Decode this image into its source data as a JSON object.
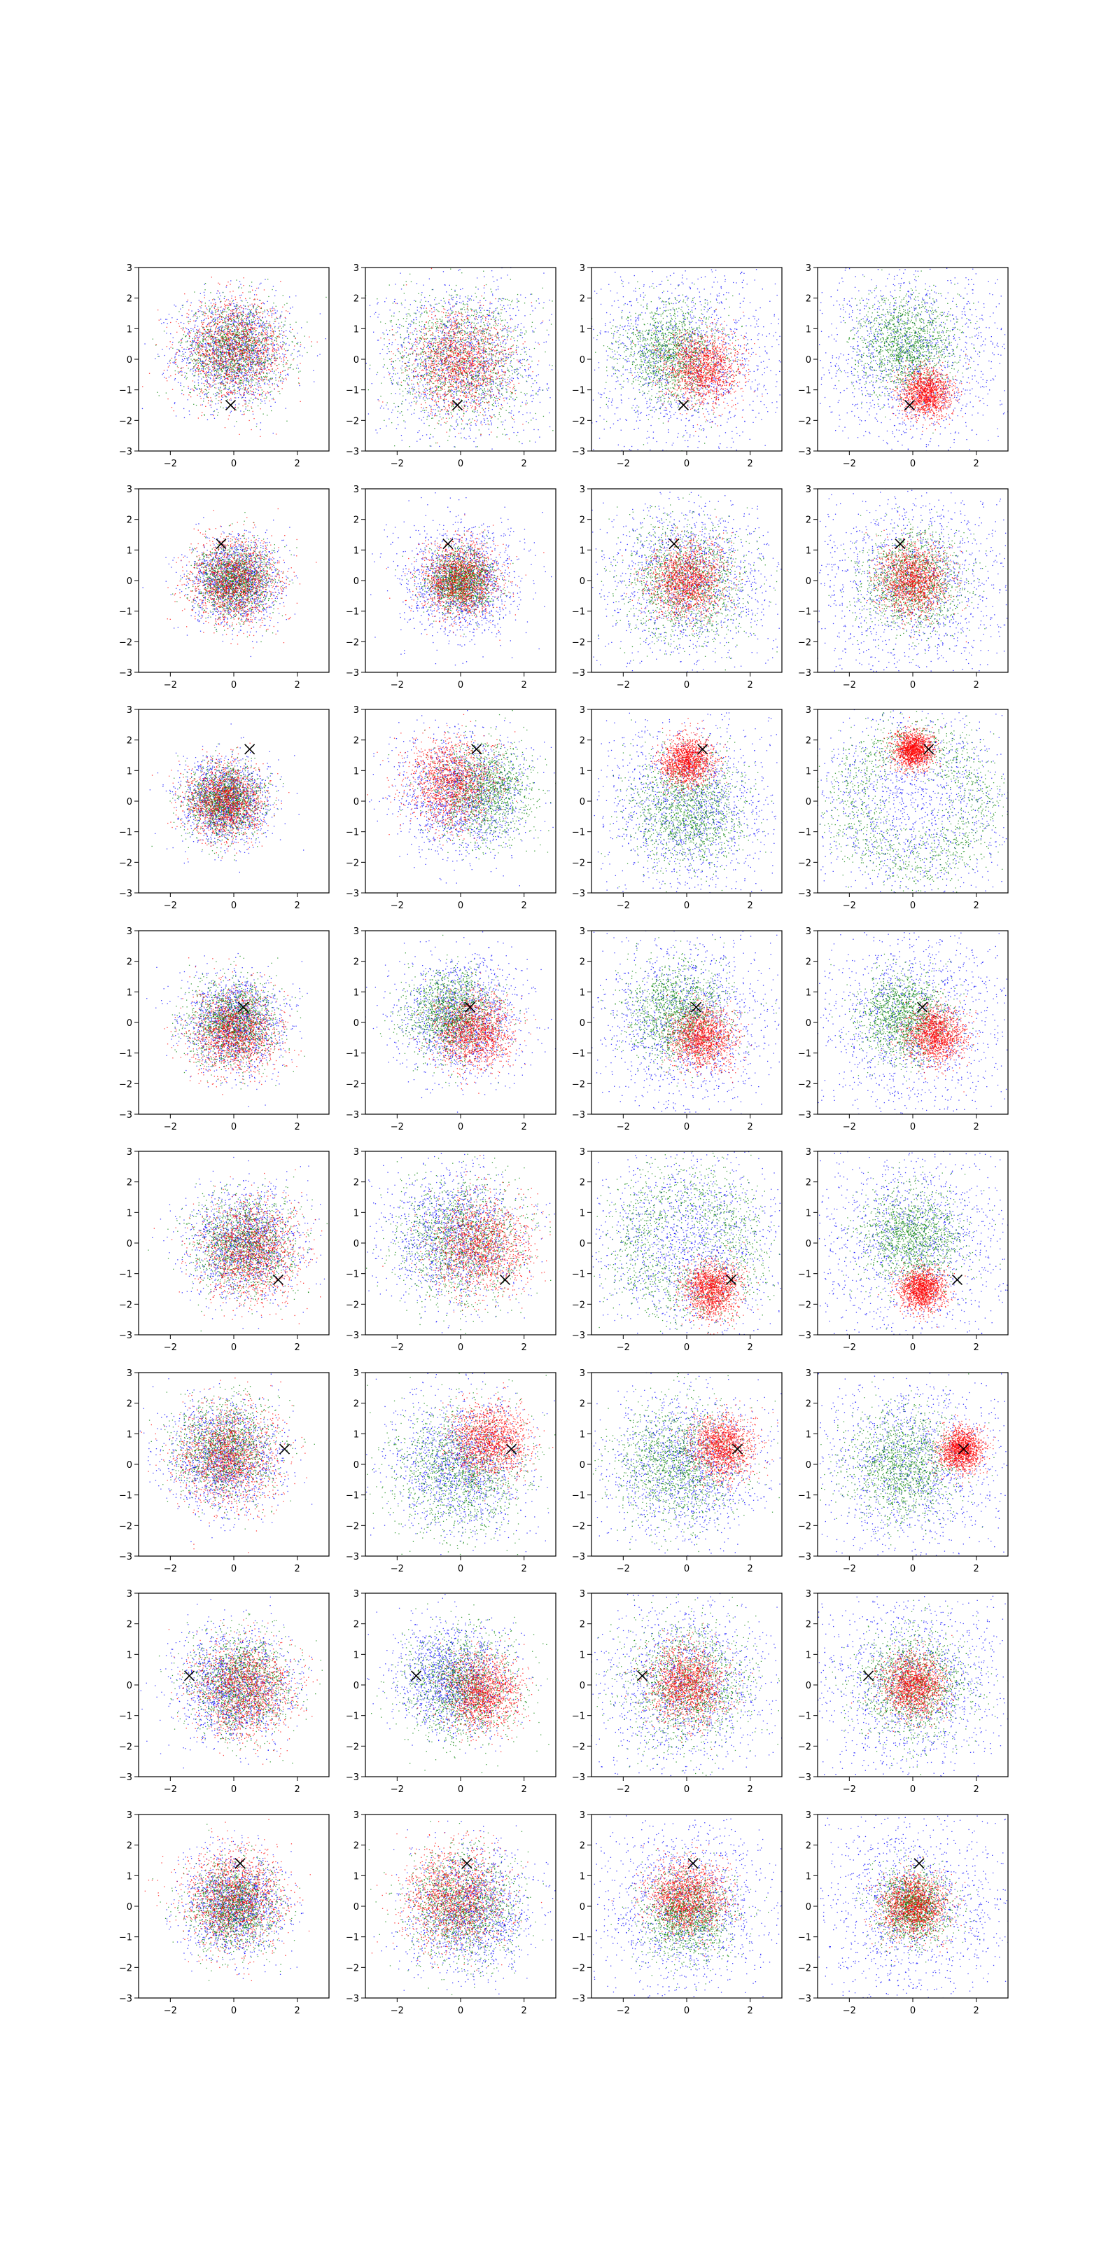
{
  "chart_data": {
    "type": "scatter",
    "layout": {
      "rows": 8,
      "cols": 4
    },
    "xlim": [
      -3,
      3
    ],
    "ylim": [
      -3,
      3
    ],
    "xticks": [
      -2,
      0,
      2
    ],
    "yticks": [
      -3,
      -2,
      -1,
      0,
      1,
      2,
      3
    ],
    "xtick_labels": [
      "−2",
      "0",
      "2"
    ],
    "ytick_labels": [
      "−3",
      "−2",
      "−1",
      "0",
      "1",
      "2",
      "3"
    ],
    "grid": false,
    "series_colors": {
      "blue": "#0000ff",
      "green": "#008000",
      "red": "#ff0000"
    },
    "marker_symbol": "x",
    "marker_color": "#000000",
    "points_per_series": 1400,
    "rows": [
      {
        "marker": [
          -0.1,
          -1.5
        ],
        "panels": [
          {
            "blue": {
              "c": [
                0,
                0.3
              ],
              "s": 0.9
            },
            "green": {
              "c": [
                0,
                0.3
              ],
              "s": 0.8
            },
            "red": {
              "c": [
                0,
                0.3
              ],
              "s": 0.8
            }
          },
          {
            "blue": {
              "c": [
                0,
                0
              ],
              "s": 1.3
            },
            "green": {
              "c": [
                0,
                0
              ],
              "s": 1.1
            },
            "red": {
              "c": [
                0,
                -0.1
              ],
              "s": 0.8
            }
          },
          {
            "blue": {
              "c": [
                0,
                0
              ],
              "s": 1.5
            },
            "green": {
              "c": [
                -0.5,
                0.2
              ],
              "s": 0.8
            },
            "red": {
              "c": [
                0.5,
                -0.3
              ],
              "s": 0.6
            }
          },
          {
            "blue": {
              "c": [
                0,
                0
              ],
              "s": 1.6
            },
            "green": {
              "c": [
                -0.2,
                0.5
              ],
              "s": 0.8
            },
            "red": {
              "c": [
                0.4,
                -1.1
              ],
              "s": 0.4
            }
          }
        ]
      },
      {
        "marker": [
          -0.4,
          1.2
        ],
        "panels": [
          {
            "blue": {
              "c": [
                0,
                0
              ],
              "s": 0.7
            },
            "green": {
              "c": [
                0,
                0
              ],
              "s": 0.6
            },
            "red": {
              "c": [
                0,
                0
              ],
              "s": 0.7
            }
          },
          {
            "blue": {
              "c": [
                0,
                0
              ],
              "s": 0.9
            },
            "green": {
              "c": [
                0,
                0
              ],
              "s": 0.5
            },
            "red": {
              "c": [
                0,
                0
              ],
              "s": 0.6
            }
          },
          {
            "blue": {
              "c": [
                0,
                0
              ],
              "s": 1.4
            },
            "green": {
              "c": [
                0,
                0
              ],
              "s": 1.0
            },
            "red": {
              "c": [
                0,
                0
              ],
              "s": 0.6
            }
          },
          {
            "blue": {
              "c": [
                0,
                0
              ],
              "s": 1.6
            },
            "green": {
              "c": [
                0,
                0
              ],
              "s": 0.8
            },
            "red": {
              "c": [
                0,
                0
              ],
              "s": 0.55
            }
          }
        ]
      },
      {
        "marker": [
          0.5,
          1.7
        ],
        "panels": [
          {
            "blue": {
              "c": [
                -0.3,
                0
              ],
              "s": 0.7
            },
            "green": {
              "c": [
                -0.3,
                0
              ],
              "s": 0.6
            },
            "red": {
              "c": [
                -0.3,
                0
              ],
              "s": 0.6
            }
          },
          {
            "blue": {
              "c": [
                0,
                0.2
              ],
              "s": 1.0
            },
            "green": {
              "c": [
                0.7,
                0.3
              ],
              "s": 0.8
            },
            "red": {
              "c": [
                -0.3,
                0.6
              ],
              "s": 0.7
            }
          },
          {
            "blue": {
              "c": [
                0,
                -0.2
              ],
              "s": 1.4
            },
            "green": {
              "c": [
                0,
                -0.3
              ],
              "s": 0.9
            },
            "red": {
              "c": [
                0,
                1.3
              ],
              "s": 0.4
            }
          },
          {
            "blue": {
              "c": [
                0,
                0
              ],
              "s": 1.7
            },
            "green": {
              "c": [
                0,
                0
              ],
              "ring": 2.0,
              "s": 0.5
            },
            "red": {
              "c": [
                0,
                1.7
              ],
              "s": 0.3
            }
          }
        ]
      },
      {
        "marker": [
          0.3,
          0.5
        ],
        "panels": [
          {
            "blue": {
              "c": [
                0,
                0
              ],
              "s": 0.8
            },
            "green": {
              "c": [
                0,
                0
              ],
              "s": 0.7
            },
            "red": {
              "c": [
                0,
                -0.3
              ],
              "s": 0.7
            }
          },
          {
            "blue": {
              "c": [
                0,
                0.2
              ],
              "s": 1.0
            },
            "green": {
              "c": [
                -0.3,
                0.3
              ],
              "s": 0.7
            },
            "red": {
              "c": [
                0.4,
                -0.3
              ],
              "s": 0.6
            }
          },
          {
            "blue": {
              "c": [
                0,
                0
              ],
              "s": 1.4
            },
            "green": {
              "c": [
                -0.3,
                0.3
              ],
              "s": 0.8
            },
            "red": {
              "c": [
                0.5,
                -0.5
              ],
              "s": 0.5
            }
          },
          {
            "blue": {
              "c": [
                0,
                0
              ],
              "s": 1.6
            },
            "green": {
              "c": [
                -0.3,
                0.2
              ],
              "s": 0.7
            },
            "red": {
              "c": [
                0.7,
                -0.4
              ],
              "s": 0.45
            }
          }
        ]
      },
      {
        "marker": [
          1.4,
          -1.2
        ],
        "panels": [
          {
            "blue": {
              "c": [
                0.3,
                0
              ],
              "s": 0.9
            },
            "green": {
              "c": [
                0.3,
                0
              ],
              "s": 0.8
            },
            "red": {
              "c": [
                0.5,
                -0.2
              ],
              "s": 0.8
            }
          },
          {
            "blue": {
              "c": [
                -0.2,
                0.2
              ],
              "s": 1.1
            },
            "green": {
              "c": [
                0,
                0.1
              ],
              "s": 1.0
            },
            "red": {
              "c": [
                0.6,
                -0.1
              ],
              "s": 0.8
            }
          },
          {
            "blue": {
              "c": [
                0,
                0
              ],
              "s": 1.5
            },
            "green": {
              "c": [
                0,
                0
              ],
              "ring": 1.8,
              "s": 0.6
            },
            "red": {
              "c": [
                0.8,
                -1.5
              ],
              "s": 0.45
            }
          },
          {
            "blue": {
              "c": [
                0,
                0
              ],
              "s": 1.6
            },
            "green": {
              "c": [
                0,
                0.2
              ],
              "s": 0.8
            },
            "red": {
              "c": [
                0.3,
                -1.5
              ],
              "s": 0.35
            }
          }
        ]
      },
      {
        "marker": [
          1.6,
          0.5
        ],
        "panels": [
          {
            "blue": {
              "c": [
                -0.3,
                0.3
              ],
              "s": 0.9
            },
            "green": {
              "c": [
                -0.3,
                0.5
              ],
              "s": 0.8
            },
            "red": {
              "c": [
                -0.2,
                0.3
              ],
              "s": 0.8
            }
          },
          {
            "blue": {
              "c": [
                0,
                0
              ],
              "s": 1.1
            },
            "green": {
              "c": [
                0,
                -0.2
              ],
              "s": 1.1
            },
            "red": {
              "c": [
                0.9,
                0.8
              ],
              "s": 0.6
            }
          },
          {
            "blue": {
              "c": [
                0,
                0
              ],
              "s": 1.3
            },
            "green": {
              "c": [
                -0.3,
                0
              ],
              "s": 1.0
            },
            "red": {
              "c": [
                1.1,
                0.6
              ],
              "s": 0.5
            }
          },
          {
            "blue": {
              "c": [
                0,
                0
              ],
              "s": 1.6
            },
            "green": {
              "c": [
                -0.3,
                0
              ],
              "s": 0.9
            },
            "red": {
              "c": [
                1.5,
                0.5
              ],
              "s": 0.35
            }
          }
        ]
      },
      {
        "marker": [
          -1.4,
          0.3
        ],
        "panels": [
          {
            "blue": {
              "c": [
                0,
                0
              ],
              "s": 0.9
            },
            "green": {
              "c": [
                0.2,
                0
              ],
              "s": 0.8
            },
            "red": {
              "c": [
                0.3,
                -0.1
              ],
              "s": 0.8
            }
          },
          {
            "blue": {
              "c": [
                -0.3,
                0.2
              ],
              "s": 0.9
            },
            "green": {
              "c": [
                0,
                0
              ],
              "s": 0.9
            },
            "red": {
              "c": [
                0.7,
                -0.2
              ],
              "s": 0.6
            }
          },
          {
            "blue": {
              "c": [
                0,
                0
              ],
              "s": 1.4
            },
            "green": {
              "c": [
                0,
                0
              ],
              "s": 1.0
            },
            "red": {
              "c": [
                0,
                0
              ],
              "s": 0.6
            }
          },
          {
            "blue": {
              "c": [
                0,
                0
              ],
              "s": 1.6
            },
            "green": {
              "c": [
                0,
                0
              ],
              "s": 0.9
            },
            "red": {
              "c": [
                0,
                0
              ],
              "s": 0.5
            }
          }
        ]
      },
      {
        "marker": [
          0.2,
          1.4
        ],
        "panels": [
          {
            "blue": {
              "c": [
                0,
                0
              ],
              "s": 0.8
            },
            "green": {
              "c": [
                0,
                0
              ],
              "s": 0.7
            },
            "red": {
              "c": [
                0,
                0.3
              ],
              "s": 0.8
            }
          },
          {
            "blue": {
              "c": [
                0.3,
                -0.2
              ],
              "s": 1.0
            },
            "green": {
              "c": [
                0,
                0
              ],
              "s": 0.9
            },
            "red": {
              "c": [
                -0.2,
                0.3
              ],
              "s": 0.8
            }
          },
          {
            "blue": {
              "c": [
                0,
                0
              ],
              "s": 1.4
            },
            "green": {
              "c": [
                0,
                -0.3
              ],
              "s": 0.7
            },
            "red": {
              "c": [
                0,
                0.3
              ],
              "s": 0.6
            }
          },
          {
            "blue": {
              "c": [
                0,
                0
              ],
              "s": 1.6
            },
            "green": {
              "c": [
                0,
                0
              ],
              "s": 0.6
            },
            "red": {
              "c": [
                0,
                0
              ],
              "s": 0.5
            }
          }
        ]
      }
    ]
  }
}
